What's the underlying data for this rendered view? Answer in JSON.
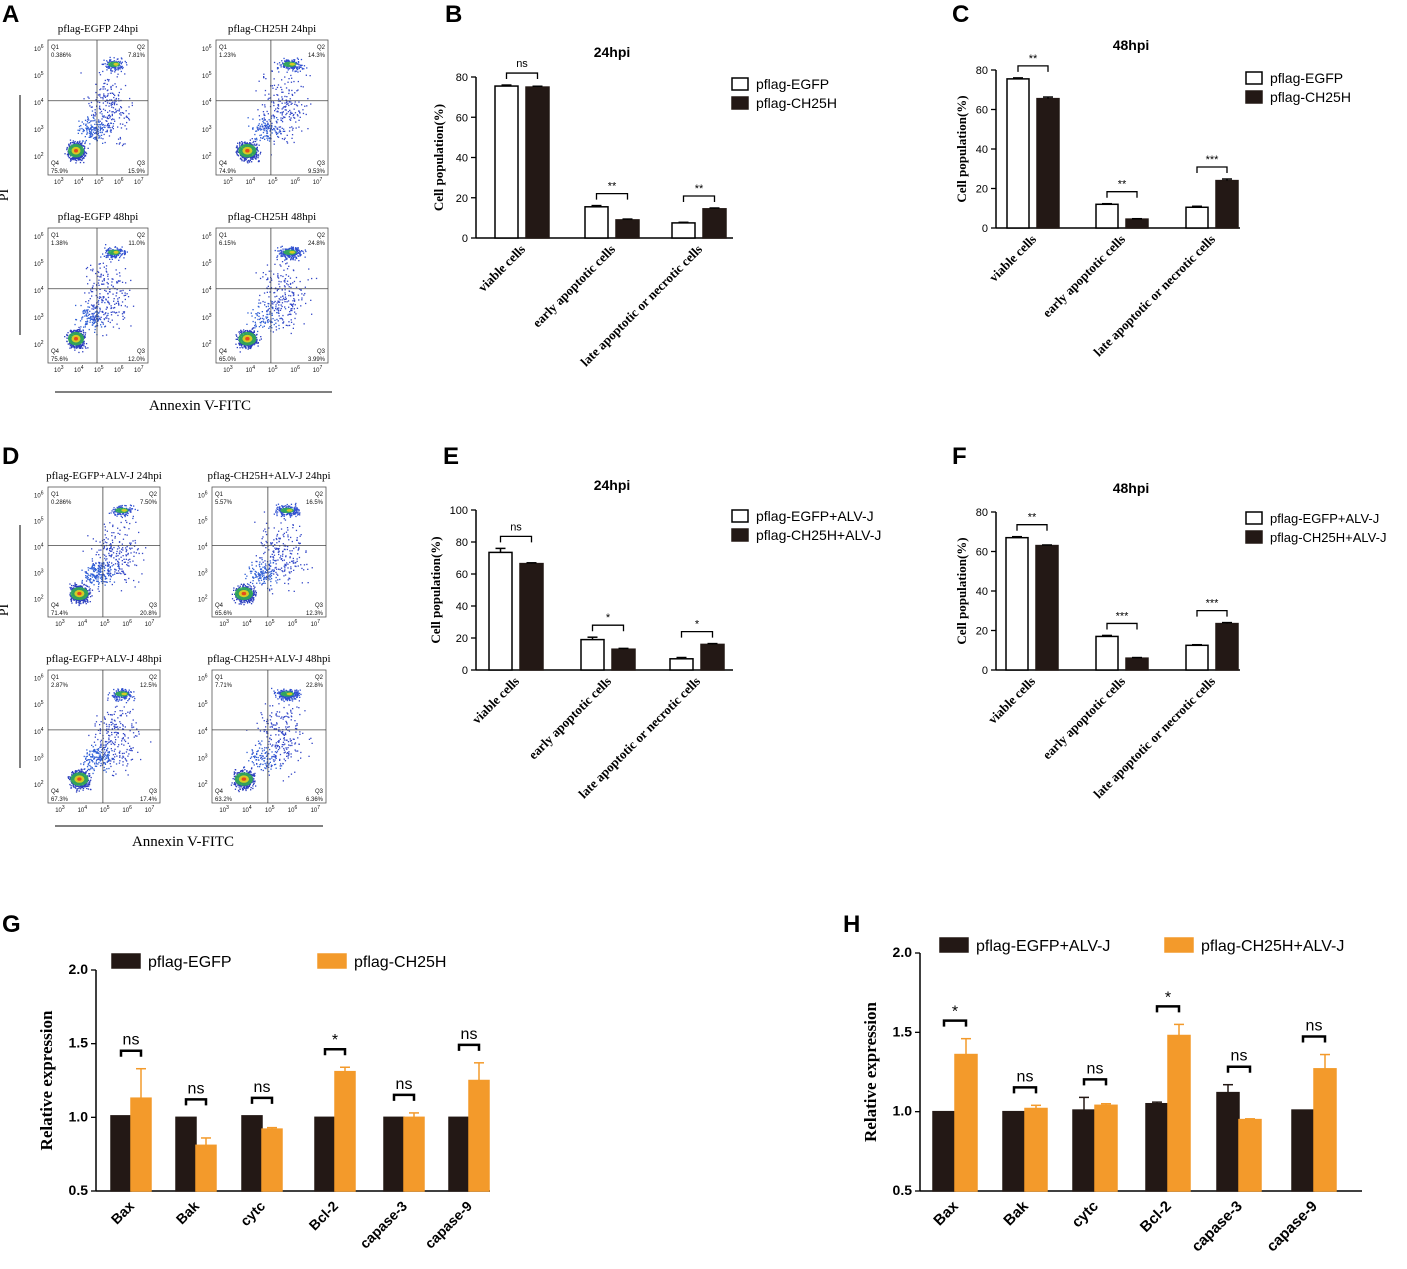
{
  "panels": {
    "A": {
      "letter": "A",
      "plots": [
        {
          "title": "pflag-EGFP 24hpi",
          "q1": "0.386%",
          "q2": "7.81%",
          "q3": "15.9%",
          "q4": "75.9%"
        },
        {
          "title": "pflag-CH25H 24hpi",
          "q1": "1.23%",
          "q2": "14.3%",
          "q3": "9.53%",
          "q4": "74.9%"
        },
        {
          "title": "pflag-EGFP 48hpi",
          "q1": "1.38%",
          "q2": "11.0%",
          "q3": "12.0%",
          "q4": "75.6%"
        },
        {
          "title": "pflag-CH25H 48hpi",
          "q1": "6.15%",
          "q2": "24.8%",
          "q3": "3.99%",
          "q4": "65.0%"
        }
      ],
      "ylabel": "PI",
      "xlabel": "Annexin V-FITC"
    },
    "D": {
      "letter": "D",
      "plots": [
        {
          "title": "pflag-EGFP+ALV-J 24hpi",
          "q1": "0.286%",
          "q2": "7.50%",
          "q3": "20.8%",
          "q4": "71.4%"
        },
        {
          "title": "pflag-CH25H+ALV-J 24hpi",
          "q1": "5.57%",
          "q2": "16.5%",
          "q3": "12.3%",
          "q4": "65.6%"
        },
        {
          "title": "pflag-EGFP+ALV-J 48hpi",
          "q1": "2.87%",
          "q2": "12.5%",
          "q3": "17.4%",
          "q4": "67.3%"
        },
        {
          "title": "pflag-CH25H+ALV-J 48hpi",
          "q1": "7.71%",
          "q2": "22.8%",
          "q3": "6.36%",
          "q4": "63.2%"
        }
      ],
      "ylabel": "PI",
      "xlabel": "Annexin V-FITC"
    },
    "flow_axis": {
      "q_labels": [
        "Q1",
        "Q2",
        "Q3",
        "Q4"
      ],
      "y_ticks": [
        "10",
        "10",
        "10",
        "10",
        "10",
        "10"
      ],
      "y_exps": [
        "2",
        "3",
        "4",
        "5",
        "6"
      ],
      "x_exps": [
        "3",
        "4",
        "5",
        "6",
        "7"
      ]
    }
  },
  "chart_data": [
    {
      "letter": "B",
      "type": "bar",
      "title": "24hpi",
      "ylabel": "Cell population(%)",
      "ylim": [
        0,
        80
      ],
      "yticks": [
        "0",
        "20",
        "40",
        "60",
        "80"
      ],
      "categories": [
        "viable cells",
        "early apoptotic cells",
        "late apoptotic or necrotic cells"
      ],
      "series": [
        {
          "name": "pflag-EGFP",
          "color": "#ffffff",
          "values": [
            75.5,
            15.5,
            7.5
          ],
          "errors": [
            0.5,
            0.6,
            0.3
          ]
        },
        {
          "name": "pflag-CH25H",
          "color": "#231815",
          "values": [
            75,
            9,
            14.5
          ],
          "errors": [
            0.4,
            0.4,
            0.4
          ]
        }
      ],
      "significance": [
        "ns",
        "**",
        "**"
      ]
    },
    {
      "letter": "C",
      "type": "bar",
      "title": "48hpi",
      "ylabel": "Cell population(%)",
      "ylim": [
        0,
        80
      ],
      "yticks": [
        "0",
        "20",
        "40",
        "60",
        "80"
      ],
      "categories": [
        "viable cells",
        "early apoptotic cells",
        "late apoptotic or necrotic cells"
      ],
      "series": [
        {
          "name": "pflag-EGFP",
          "color": "#ffffff",
          "values": [
            75.5,
            12,
            10.5
          ],
          "errors": [
            0.5,
            0.3,
            0.5
          ]
        },
        {
          "name": "pflag-CH25H",
          "color": "#231815",
          "values": [
            65.5,
            4.5,
            24
          ],
          "errors": [
            0.8,
            0.2,
            0.8
          ]
        }
      ],
      "significance": [
        "**",
        "**",
        "***"
      ]
    },
    {
      "letter": "E",
      "type": "bar",
      "title": "24hpi",
      "ylabel": "Cell population(%)",
      "ylim": [
        0,
        100
      ],
      "yticks": [
        "0",
        "20",
        "40",
        "60",
        "80",
        "100"
      ],
      "categories": [
        "viable cells",
        "early apoptotic cells",
        "late apoptotic or necrotic cells"
      ],
      "series": [
        {
          "name": "pflag-EGFP+ALV-J",
          "color": "#ffffff",
          "values": [
            73.5,
            19,
            7
          ],
          "errors": [
            2.5,
            1.5,
            0.8
          ]
        },
        {
          "name": "pflag-CH25H+ALV-J",
          "color": "#231815",
          "values": [
            66.5,
            13,
            16
          ],
          "errors": [
            0.5,
            0.5,
            0.5
          ]
        }
      ],
      "significance": [
        "ns",
        "*",
        "*"
      ]
    },
    {
      "letter": "F",
      "type": "bar",
      "title": "48hpi",
      "ylabel": "Cell population(%)",
      "ylim": [
        0,
        80
      ],
      "yticks": [
        "0",
        "20",
        "40",
        "60",
        "80"
      ],
      "categories": [
        "viable cells",
        "early apoptotic cells",
        "late apoptotic or necrotic cells"
      ],
      "series": [
        {
          "name": "pflag-EGFP+ALV-J",
          "color": "#ffffff",
          "values": [
            67,
            17,
            12.5
          ],
          "errors": [
            0.5,
            0.5,
            0.3
          ]
        },
        {
          "name": "pflag-CH25H+ALV-J",
          "color": "#231815",
          "values": [
            63,
            6,
            23.5
          ],
          "errors": [
            0.3,
            0.3,
            0.5
          ]
        }
      ],
      "significance": [
        "**",
        "***",
        "***"
      ]
    },
    {
      "letter": "G",
      "type": "bar",
      "title": "",
      "ylabel": "Relative expression",
      "ylim": [
        0.5,
        2.0
      ],
      "yticks": [
        "0.5",
        "1.0",
        "1.5",
        "2.0"
      ],
      "categories": [
        "Bax",
        "Bak",
        "cytc",
        "Bcl-2",
        "capase-3",
        "capase-9"
      ],
      "series": [
        {
          "name": "pflag-EGFP",
          "color": "#231815",
          "values": [
            1.01,
            1.0,
            1.01,
            1.0,
            1.0,
            1.0
          ],
          "errors": [
            0,
            0,
            0,
            0,
            0,
            0
          ]
        },
        {
          "name": "pflag-CH25H",
          "color": "#f39a2b",
          "values": [
            1.13,
            0.81,
            0.92,
            1.31,
            1.0,
            1.25
          ],
          "errors": [
            0.2,
            0.05,
            0.01,
            0.03,
            0.03,
            0.12
          ]
        }
      ],
      "significance": [
        "ns",
        "ns",
        "ns",
        "*",
        "ns",
        "ns"
      ]
    },
    {
      "letter": "H",
      "type": "bar",
      "title": "",
      "ylabel": "Relative expression",
      "ylim": [
        0.5,
        2.0
      ],
      "yticks": [
        "0.5",
        "1.0",
        "1.5",
        "2.0"
      ],
      "categories": [
        "Bax",
        "Bak",
        "cytc",
        "Bcl-2",
        "capase-3",
        "capase-9"
      ],
      "series": [
        {
          "name": "pflag-EGFP+ALV-J",
          "color": "#231815",
          "values": [
            1.0,
            1.0,
            1.01,
            1.05,
            1.12,
            1.01
          ],
          "errors": [
            0,
            0,
            0.08,
            0.01,
            0.05,
            0
          ]
        },
        {
          "name": "pflag-CH25H+ALV-J",
          "color": "#f39a2b",
          "values": [
            1.36,
            1.02,
            1.04,
            1.48,
            0.95,
            1.27
          ],
          "errors": [
            0.1,
            0.02,
            0.01,
            0.07,
            0.005,
            0.09
          ]
        }
      ],
      "significance": [
        "*",
        "ns",
        "ns",
        "*",
        "ns",
        "ns"
      ]
    }
  ]
}
